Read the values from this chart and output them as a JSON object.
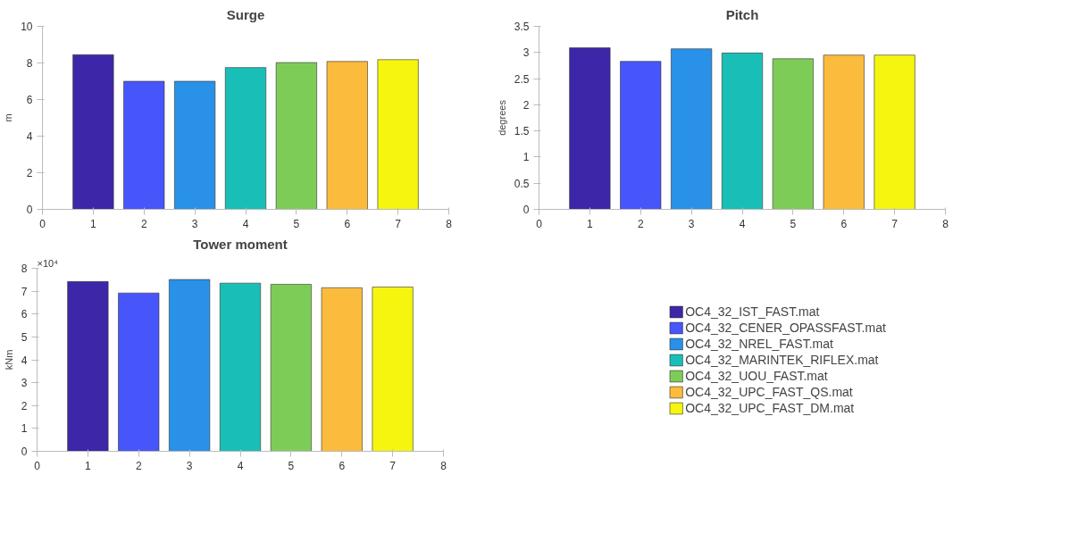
{
  "chart_data": [
    {
      "type": "bar",
      "title": "Surge",
      "ylabel": "m",
      "xlim": [
        0,
        8
      ],
      "xticks": [
        0,
        1,
        2,
        3,
        4,
        5,
        6,
        7,
        8
      ],
      "ylim": [
        0,
        10
      ],
      "yticks": [
        0,
        2,
        4,
        6,
        8,
        10
      ],
      "grid": false,
      "series": [
        {
          "x": [
            1
          ],
          "values": [
            8.45
          ],
          "color": "#3e26a8"
        },
        {
          "x": [
            2
          ],
          "values": [
            7.0
          ],
          "color": "#4756fa"
        },
        {
          "x": [
            3
          ],
          "values": [
            7.0
          ],
          "color": "#2991e8"
        },
        {
          "x": [
            4
          ],
          "values": [
            7.75
          ],
          "color": "#19bfb7"
        },
        {
          "x": [
            5
          ],
          "values": [
            8.02
          ],
          "color": "#7ecc58"
        },
        {
          "x": [
            6
          ],
          "values": [
            8.08
          ],
          "color": "#fbbb3c"
        },
        {
          "x": [
            7
          ],
          "values": [
            8.18
          ],
          "color": "#f5f50f"
        }
      ]
    },
    {
      "type": "bar",
      "title": "Pitch",
      "ylabel": "degrees",
      "xlim": [
        0,
        8
      ],
      "xticks": [
        0,
        1,
        2,
        3,
        4,
        5,
        6,
        7,
        8
      ],
      "ylim": [
        0,
        3.5
      ],
      "yticks": [
        0,
        0.5,
        1,
        1.5,
        2,
        2.5,
        3,
        3.5
      ],
      "grid": false,
      "series": [
        {
          "x": [
            1
          ],
          "values": [
            3.09
          ],
          "color": "#3e26a8"
        },
        {
          "x": [
            2
          ],
          "values": [
            2.83
          ],
          "color": "#4756fa"
        },
        {
          "x": [
            3
          ],
          "values": [
            3.07
          ],
          "color": "#2991e8"
        },
        {
          "x": [
            4
          ],
          "values": [
            2.99
          ],
          "color": "#19bfb7"
        },
        {
          "x": [
            5
          ],
          "values": [
            2.88
          ],
          "color": "#7ecc58"
        },
        {
          "x": [
            6
          ],
          "values": [
            2.95
          ],
          "color": "#fbbb3c"
        },
        {
          "x": [
            7
          ],
          "values": [
            2.95
          ],
          "color": "#f5f50f"
        }
      ]
    },
    {
      "type": "bar",
      "title": "Tower moment",
      "ylabel": "kNm",
      "annotations": [
        "×10⁴"
      ],
      "xlim": [
        0,
        8
      ],
      "xticks": [
        0,
        1,
        2,
        3,
        4,
        5,
        6,
        7,
        8
      ],
      "ylim": [
        0,
        8
      ],
      "yticks": [
        0,
        1,
        2,
        3,
        4,
        5,
        6,
        7,
        8
      ],
      "grid": false,
      "legend": "right",
      "series": [
        {
          "name": "OC4_32_IST_FAST.mat",
          "x": [
            1
          ],
          "values": [
            7.42
          ],
          "color": "#3e26a8"
        },
        {
          "name": "OC4_32_CENER_OPASSFAST.mat",
          "x": [
            2
          ],
          "values": [
            6.92
          ],
          "color": "#4756fa"
        },
        {
          "name": "OC4_32_NREL_FAST.mat",
          "x": [
            3
          ],
          "values": [
            7.51
          ],
          "color": "#2991e8"
        },
        {
          "name": "OC4_32_MARINTEK_RIFLEX.mat",
          "x": [
            4
          ],
          "values": [
            7.35
          ],
          "color": "#19bfb7"
        },
        {
          "name": "OC4_32_UOU_FAST.mat",
          "x": [
            5
          ],
          "values": [
            7.3
          ],
          "color": "#7ecc58"
        },
        {
          "name": "OC4_32_UPC_FAST_QS.mat",
          "x": [
            6
          ],
          "values": [
            7.15
          ],
          "color": "#fbbb3c"
        },
        {
          "name": "OC4_32_UPC_FAST_DM.mat",
          "x": [
            7
          ],
          "values": [
            7.18
          ],
          "color": "#f5f50f"
        }
      ]
    }
  ]
}
